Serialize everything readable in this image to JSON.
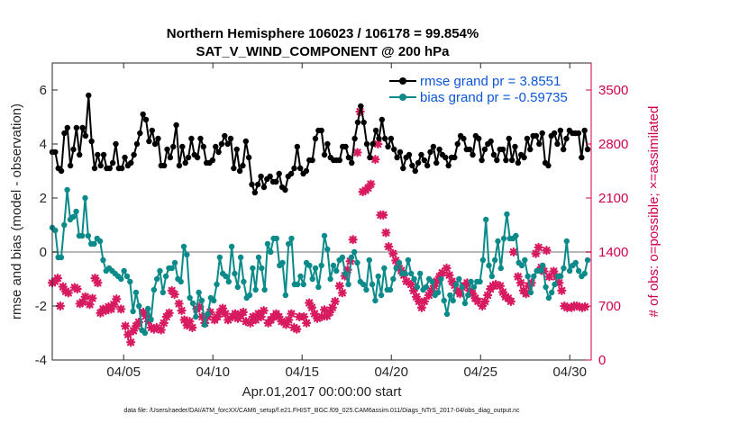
{
  "chart_data": {
    "type": "line",
    "title_line1": "Northern Hemisphere 106023 / 106178 = 99.854%",
    "title_line2": "SAT_V_WIND_COMPONENT @ 200 hPa",
    "xlabel": "Apr.01,2017 00:00:00 start",
    "ylabel_left": "rmse and bias (model - observation)",
    "ylabel_right": "# of obs: o=possible; ×=assimilated",
    "footnote": "data file: /Users/raeder/DAI/ATM_forcXX/CAM6_setup/f.e21.FHIST_BGC.f09_025.CAM6assim.011/Diags_NTrS_2017-04/obs_diag_output.nc",
    "xlim": [
      1,
      31.2
    ],
    "ylim_left": [
      -4,
      7
    ],
    "ylim_right": [
      0,
      3850
    ],
    "x_tick_days": [
      5,
      10,
      15,
      20,
      25,
      30
    ],
    "x_tick_labels": [
      "04/05",
      "04/10",
      "04/15",
      "04/20",
      "04/25",
      "04/30"
    ],
    "y_left_ticks": [
      -4,
      -2,
      0,
      2,
      4,
      6
    ],
    "y_right_ticks": [
      0,
      700,
      1400,
      2100,
      2800,
      3500
    ],
    "colors": {
      "rmse": "#000000",
      "bias": "#0b8a8a",
      "obs": "#d81b60",
      "legend_text": "#0b55d8",
      "right_axis": "#d0004e"
    },
    "series": [
      {
        "name": "rmse grand pr = 3.8551",
        "values": [
          3.7,
          3.7,
          3.1,
          3.0,
          4.4,
          4.6,
          3.2,
          3.8,
          4.6,
          3.6,
          4.6,
          4.3,
          5.8,
          4.1,
          3.1,
          3.6,
          3.2,
          3.6,
          3.1,
          3.1,
          3.3,
          4.0,
          3.1,
          3.1,
          3.5,
          3.2,
          3.3,
          3.6,
          4.0,
          4.4,
          5.1,
          4.9,
          4.1,
          4.5,
          4.0,
          4.2,
          3.2,
          3.2,
          3.8,
          3.5,
          3.9,
          4.7,
          3.2,
          3.9,
          3.3,
          3.5,
          4.2,
          3.6,
          3.5,
          4.2,
          3.9,
          3.3,
          3.3,
          3.4,
          3.9,
          3.7,
          4.0,
          4.3,
          4.0,
          4.2,
          3.1,
          3.8,
          3.0,
          3.2,
          4.1,
          3.5,
          2.5,
          2.2,
          2.5,
          2.8,
          2.4,
          2.7,
          2.8,
          2.6,
          2.6,
          2.9,
          2.4,
          2.3,
          2.8,
          2.9,
          3.1,
          3.9,
          3.1,
          2.9,
          3.0,
          3.4,
          3.4,
          4.2,
          4.5,
          4.5,
          3.6,
          4.0,
          3.5,
          3.4,
          3.4,
          3.4,
          3.9,
          3.9,
          3.5,
          3.3,
          4.2,
          4.8,
          5.4,
          4.8,
          4.0,
          3.5,
          4.0,
          4.5,
          4.2,
          4.9,
          4.2,
          3.9,
          4.2,
          3.8,
          3.5,
          3.7,
          3.1,
          3.5,
          3.6,
          3.2,
          3.0,
          3.3,
          3.6,
          3.4,
          3.2,
          3.7,
          3.9,
          3.3,
          3.8,
          3.6,
          3.5,
          3.2,
          3.5,
          3.5,
          4.0,
          4.3,
          4.2,
          3.8,
          3.8,
          3.6,
          4.3,
          4.2,
          3.4,
          3.8,
          4.0,
          4.1,
          3.6,
          3.4,
          3.8,
          3.8,
          3.4,
          4.2,
          3.4,
          3.9,
          3.3,
          3.6,
          3.5,
          4.2,
          3.8,
          4.3,
          4.3,
          4.0,
          4.4,
          3.3,
          3.2,
          4.3,
          4.4,
          4.0,
          4.5,
          3.8,
          4.2,
          4.5,
          4.4,
          4.4,
          4.4,
          3.5,
          4.5,
          3.8
        ]
      },
      {
        "name": "bias grand pr = -0.59735",
        "values": [
          0.9,
          0.8,
          -0.2,
          -0.2,
          1.0,
          2.3,
          1.2,
          1.3,
          1.5,
          0.6,
          0.6,
          2.0,
          0.6,
          0.3,
          0.3,
          0.5,
          0.4,
          -0.3,
          -0.7,
          -0.6,
          -0.7,
          -0.8,
          -0.9,
          -1.0,
          -0.7,
          -0.9,
          -1.1,
          -2.2,
          -1.5,
          -2.0,
          -2.9,
          -3.0,
          -2.1,
          -2.5,
          -1.4,
          -1.0,
          -0.7,
          -1.5,
          -0.9,
          -0.6,
          -0.6,
          -0.4,
          -1.0,
          -1.1,
          0.2,
          -0.1,
          -1.7,
          -1.9,
          -2.4,
          -1.5,
          -1.8,
          -2.7,
          -2.3,
          -1.7,
          -1.8,
          -1.2,
          -0.2,
          -0.8,
          -0.9,
          -1.1,
          0.2,
          -0.8,
          -1.3,
          -0.2,
          -1.1,
          -1.7,
          -1.6,
          -0.6,
          -1.4,
          -0.2,
          -0.6,
          -1.4,
          0.3,
          0.0,
          0.5,
          0.5,
          -0.5,
          -0.4,
          -1.6,
          0.3,
          0.5,
          -1.2,
          -1.2,
          -0.9,
          -1.2,
          -0.4,
          -0.5,
          -1.0,
          -0.6,
          -1.3,
          -0.5,
          0.6,
          0.1,
          -1.0,
          -0.5,
          -0.7,
          -0.3,
          -0.2,
          -0.8,
          -1.2,
          -0.2,
          0.0,
          -0.4,
          -1.1,
          -1.2,
          -1.4,
          -0.3,
          -1.2,
          -1.8,
          -0.9,
          -1.6,
          -0.6,
          -1.4,
          -1.4,
          -1.0,
          -0.6,
          -0.4,
          -0.8,
          -0.8,
          -0.3,
          -0.8,
          -1.0,
          -1.3,
          -0.8,
          -1.4,
          -1.3,
          -1.0,
          -1.1,
          -1.6,
          -1.5,
          -1.0,
          -1.8,
          -2.3,
          -1.6,
          -1.8,
          -1.2,
          -1.0,
          -1.3,
          -1.9,
          -1.6,
          -1.1,
          -1.3,
          -1.1,
          -1.1,
          -0.3,
          1.2,
          -0.5,
          -0.9,
          -0.3,
          0.4,
          -0.6,
          0.5,
          1.4,
          0.5,
          0.5,
          0.6,
          -0.4,
          -0.5,
          -0.3,
          -0.9,
          -1.5,
          -0.9,
          -0.7,
          -0.7,
          -0.5,
          -1.3,
          -1.7,
          -1.5,
          -1.2,
          -0.9,
          -0.9,
          -0.6,
          0.4,
          -0.7,
          -0.5,
          -0.4,
          -0.7,
          -0.9,
          -0.8,
          -0.3
        ]
      }
    ],
    "obs_assimilated": [
      [
        1.0,
        1000
      ],
      [
        1.15,
        1020
      ],
      [
        1.3,
        1060
      ],
      [
        1.45,
        700
      ],
      [
        1.6,
        950
      ],
      [
        1.75,
        890
      ],
      [
        1.9,
        870
      ],
      [
        2.25,
        940
      ],
      [
        2.4,
        920
      ],
      [
        2.55,
        730
      ],
      [
        2.7,
        750
      ],
      [
        2.85,
        820
      ],
      [
        3.1,
        720
      ],
      [
        3.25,
        800
      ],
      [
        3.4,
        1060
      ],
      [
        3.55,
        1000
      ],
      [
        3.7,
        610
      ],
      [
        3.85,
        660
      ],
      [
        4.0,
        640
      ],
      [
        4.15,
        690
      ],
      [
        4.3,
        660
      ],
      [
        4.45,
        720
      ],
      [
        4.6,
        790
      ],
      [
        4.85,
        660
      ],
      [
        5.1,
        440
      ],
      [
        5.25,
        330
      ],
      [
        5.4,
        230
      ],
      [
        5.55,
        380
      ],
      [
        5.7,
        440
      ],
      [
        5.85,
        490
      ],
      [
        6.1,
        620
      ],
      [
        6.25,
        570
      ],
      [
        6.4,
        500
      ],
      [
        6.55,
        420
      ],
      [
        6.7,
        400
      ],
      [
        6.85,
        420
      ],
      [
        7.1,
        390
      ],
      [
        7.25,
        480
      ],
      [
        7.4,
        560
      ],
      [
        7.55,
        610
      ],
      [
        7.7,
        900
      ],
      [
        7.85,
        850
      ],
      [
        8.1,
        730
      ],
      [
        8.25,
        640
      ],
      [
        8.4,
        520
      ],
      [
        8.55,
        450
      ],
      [
        8.7,
        500
      ],
      [
        8.85,
        420
      ],
      [
        9.1,
        660
      ],
      [
        9.25,
        690
      ],
      [
        9.4,
        560
      ],
      [
        9.55,
        480
      ],
      [
        9.7,
        560
      ],
      [
        9.85,
        620
      ],
      [
        10.1,
        520
      ],
      [
        10.25,
        560
      ],
      [
        10.4,
        620
      ],
      [
        10.55,
        670
      ],
      [
        10.7,
        600
      ],
      [
        10.85,
        520
      ],
      [
        11.1,
        560
      ],
      [
        11.25,
        600
      ],
      [
        11.4,
        540
      ],
      [
        11.55,
        580
      ],
      [
        11.7,
        620
      ],
      [
        11.85,
        500
      ],
      [
        12.1,
        480
      ],
      [
        12.25,
        560
      ],
      [
        12.4,
        520
      ],
      [
        12.55,
        600
      ],
      [
        12.7,
        560
      ],
      [
        12.85,
        640
      ],
      [
        13.1,
        480
      ],
      [
        13.25,
        520
      ],
      [
        13.4,
        560
      ],
      [
        13.55,
        600
      ],
      [
        13.7,
        560
      ],
      [
        13.85,
        500
      ],
      [
        14.1,
        460
      ],
      [
        14.25,
        520
      ],
      [
        14.4,
        600
      ],
      [
        14.55,
        420
      ],
      [
        14.7,
        400
      ],
      [
        14.85,
        560
      ],
      [
        15.1,
        560
      ],
      [
        15.25,
        480
      ],
      [
        15.4,
        740
      ],
      [
        15.55,
        680
      ],
      [
        15.7,
        600
      ],
      [
        15.85,
        540
      ],
      [
        16.1,
        560
      ],
      [
        16.25,
        650
      ],
      [
        16.4,
        570
      ],
      [
        16.55,
        620
      ],
      [
        16.7,
        680
      ],
      [
        16.85,
        760
      ],
      [
        17.1,
        960
      ],
      [
        17.25,
        870
      ],
      [
        17.4,
        1090
      ],
      [
        17.55,
        1170
      ],
      [
        17.7,
        1280
      ],
      [
        17.85,
        1560
      ],
      [
        18.1,
        2690
      ],
      [
        18.25,
        3220
      ],
      [
        18.4,
        2180
      ],
      [
        18.55,
        2200
      ],
      [
        18.7,
        2230
      ],
      [
        18.85,
        2280
      ],
      [
        19.1,
        2600
      ],
      [
        19.25,
        2800
      ],
      [
        19.4,
        1880
      ],
      [
        19.55,
        1880
      ],
      [
        19.7,
        1650
      ],
      [
        19.85,
        1470
      ],
      [
        20.1,
        1380
      ],
      [
        20.25,
        1290
      ],
      [
        20.4,
        1220
      ],
      [
        20.55,
        1160
      ],
      [
        20.7,
        1100
      ],
      [
        20.85,
        1020
      ],
      [
        21.1,
        980
      ],
      [
        21.25,
        900
      ],
      [
        21.4,
        820
      ],
      [
        21.55,
        760
      ],
      [
        21.7,
        680
      ],
      [
        21.85,
        760
      ],
      [
        22.1,
        840
      ],
      [
        22.25,
        900
      ],
      [
        22.4,
        960
      ],
      [
        22.55,
        1020
      ],
      [
        22.7,
        1080
      ],
      [
        22.85,
        1130
      ],
      [
        23.1,
        1190
      ],
      [
        23.25,
        1100
      ],
      [
        23.4,
        1020
      ],
      [
        23.55,
        970
      ],
      [
        23.7,
        900
      ],
      [
        23.85,
        860
      ],
      [
        24.1,
        960
      ],
      [
        24.25,
        1000
      ],
      [
        24.4,
        900
      ],
      [
        24.55,
        860
      ],
      [
        24.7,
        800
      ],
      [
        24.85,
        760
      ],
      [
        25.1,
        700
      ],
      [
        25.25,
        760
      ],
      [
        25.4,
        840
      ],
      [
        25.55,
        920
      ],
      [
        25.7,
        960
      ],
      [
        25.85,
        980
      ],
      [
        26.1,
        960
      ],
      [
        26.25,
        880
      ],
      [
        26.4,
        820
      ],
      [
        26.55,
        800
      ],
      [
        26.7,
        760
      ],
      [
        26.85,
        1400
      ],
      [
        27.1,
        1080
      ],
      [
        27.25,
        1000
      ],
      [
        27.4,
        900
      ],
      [
        27.55,
        860
      ],
      [
        27.7,
        960
      ],
      [
        27.85,
        1000
      ],
      [
        28.1,
        1380
      ],
      [
        28.25,
        1460
      ],
      [
        28.4,
        1200
      ],
      [
        28.55,
        1150
      ],
      [
        28.7,
        1420
      ],
      [
        28.85,
        1080
      ],
      [
        29.1,
        1150
      ],
      [
        29.25,
        1080
      ],
      [
        29.4,
        1000
      ],
      [
        29.55,
        900
      ],
      [
        29.7,
        700
      ],
      [
        29.85,
        680
      ],
      [
        30.1,
        680
      ],
      [
        30.25,
        700
      ],
      [
        30.4,
        700
      ],
      [
        30.55,
        690
      ],
      [
        30.7,
        680
      ],
      [
        30.85,
        690
      ]
    ]
  }
}
